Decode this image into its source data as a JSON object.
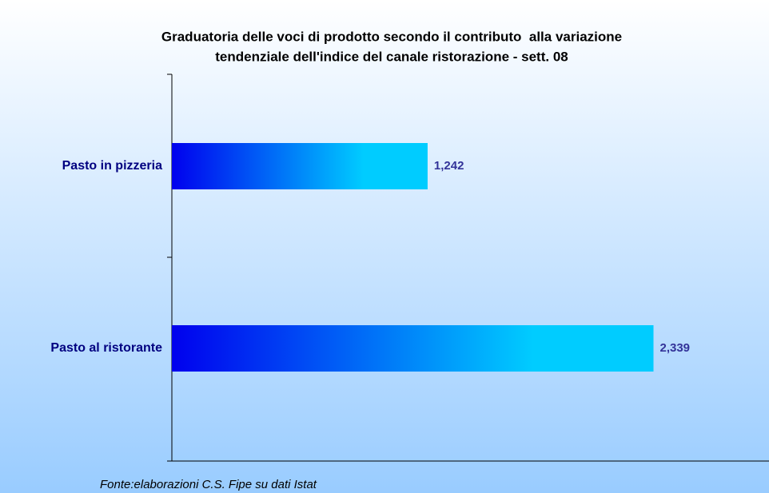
{
  "chart_data": {
    "type": "bar",
    "orientation": "horizontal",
    "title": [
      "Graduatoria delle voci di prodotto secondo il contributo  alla variazione",
      "tendenziale dell'indice del canale ristorazione - sett. 08"
    ],
    "categories": [
      "Pasto in pizzeria",
      "Pasto al ristorante"
    ],
    "values": [
      1.242,
      2.339
    ],
    "value_labels": [
      "1,242",
      "2,339"
    ],
    "colors": [
      "#0000ee",
      "#00ccff"
    ],
    "xlim": [
      0,
      2.9
    ],
    "source": "Fonte:elaborazioni C.S. Fipe su dati Istat"
  }
}
